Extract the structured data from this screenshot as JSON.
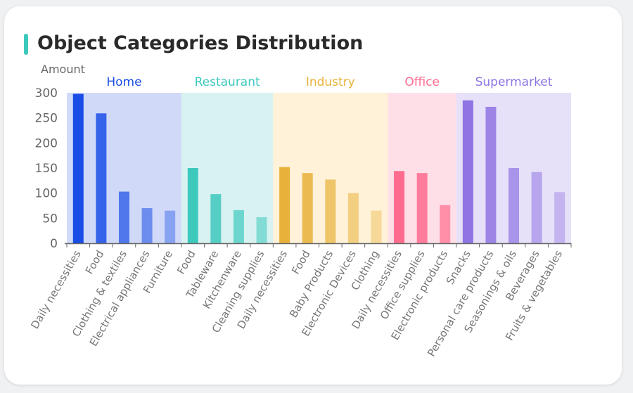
{
  "title": "Object Categories Distribution",
  "chart_data": {
    "type": "bar",
    "ylabel": "Amount",
    "ylim": [
      0,
      300
    ],
    "yticks": [
      0,
      50,
      100,
      150,
      200,
      250,
      300
    ],
    "groups": [
      {
        "name": "Home",
        "color": "#1a4de6",
        "bg": "#d0daf8",
        "categories": [
          "Daily necessities",
          "Food",
          "Clothing & textiles",
          "Electrical appliances",
          "Furniture"
        ],
        "values": [
          298,
          259,
          103,
          70,
          65
        ]
      },
      {
        "name": "Restaurant",
        "color": "#3ec9bd",
        "bg": "#d8f2f2",
        "categories": [
          "Food",
          "Tableware",
          "Kitchenware",
          "Cleaning supplies"
        ],
        "values": [
          150,
          98,
          66,
          52
        ]
      },
      {
        "name": "Industry",
        "color": "#e8b23a",
        "bg": "#fff2d8",
        "categories": [
          "Daily necessities",
          "Food",
          "Baby Products",
          "Electronic Devices",
          "Clothing"
        ],
        "values": [
          152,
          140,
          127,
          100,
          65
        ]
      },
      {
        "name": "Office",
        "color": "#ff6b8e",
        "bg": "#ffdfe7",
        "categories": [
          "Daily necessities",
          "Office supplies",
          "Electronic products"
        ],
        "values": [
          144,
          140,
          76
        ]
      },
      {
        "name": "Supermarket",
        "color": "#8f74e3",
        "bg": "#e6e0f8",
        "categories": [
          "Snacks",
          "Personal care products",
          "Seasonings & oils",
          "Beverages",
          "Fruits & vegetables"
        ],
        "values": [
          285,
          272,
          150,
          142,
          102
        ]
      }
    ]
  }
}
